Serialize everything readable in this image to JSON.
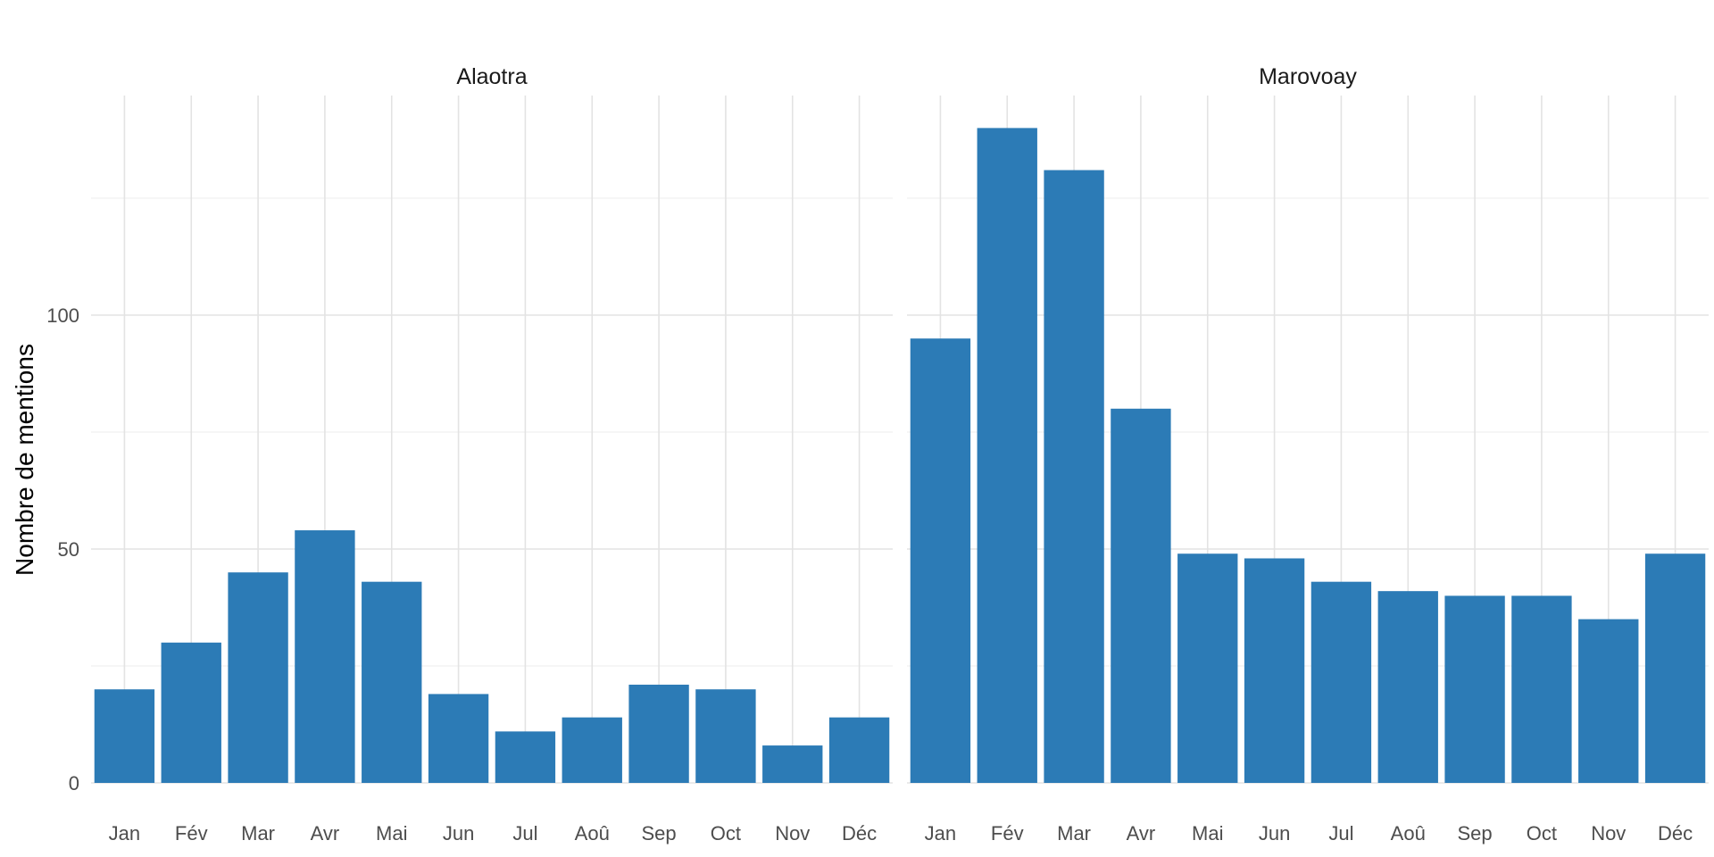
{
  "chart_data": {
    "type": "bar",
    "ylabel": "Nombre de mentions",
    "xlabel": "",
    "ylim": [
      0,
      140
    ],
    "y_ticks": [
      0,
      50,
      100
    ],
    "y_tick_labels": [
      "0",
      "50",
      "100"
    ],
    "grid": true,
    "bar_color": "#2c7bb6",
    "categories": [
      "Jan",
      "Fév",
      "Mar",
      "Avr",
      "Mai",
      "Jun",
      "Jul",
      "Aoû",
      "Sep",
      "Oct",
      "Nov",
      "Déc"
    ],
    "panels": [
      {
        "title": "Alaotra",
        "values": [
          20,
          30,
          45,
          54,
          43,
          19,
          11,
          14,
          21,
          20,
          8,
          14
        ]
      },
      {
        "title": "Marovoay",
        "values": [
          95,
          140,
          131,
          80,
          49,
          48,
          43,
          41,
          40,
          40,
          35,
          49
        ]
      }
    ]
  }
}
